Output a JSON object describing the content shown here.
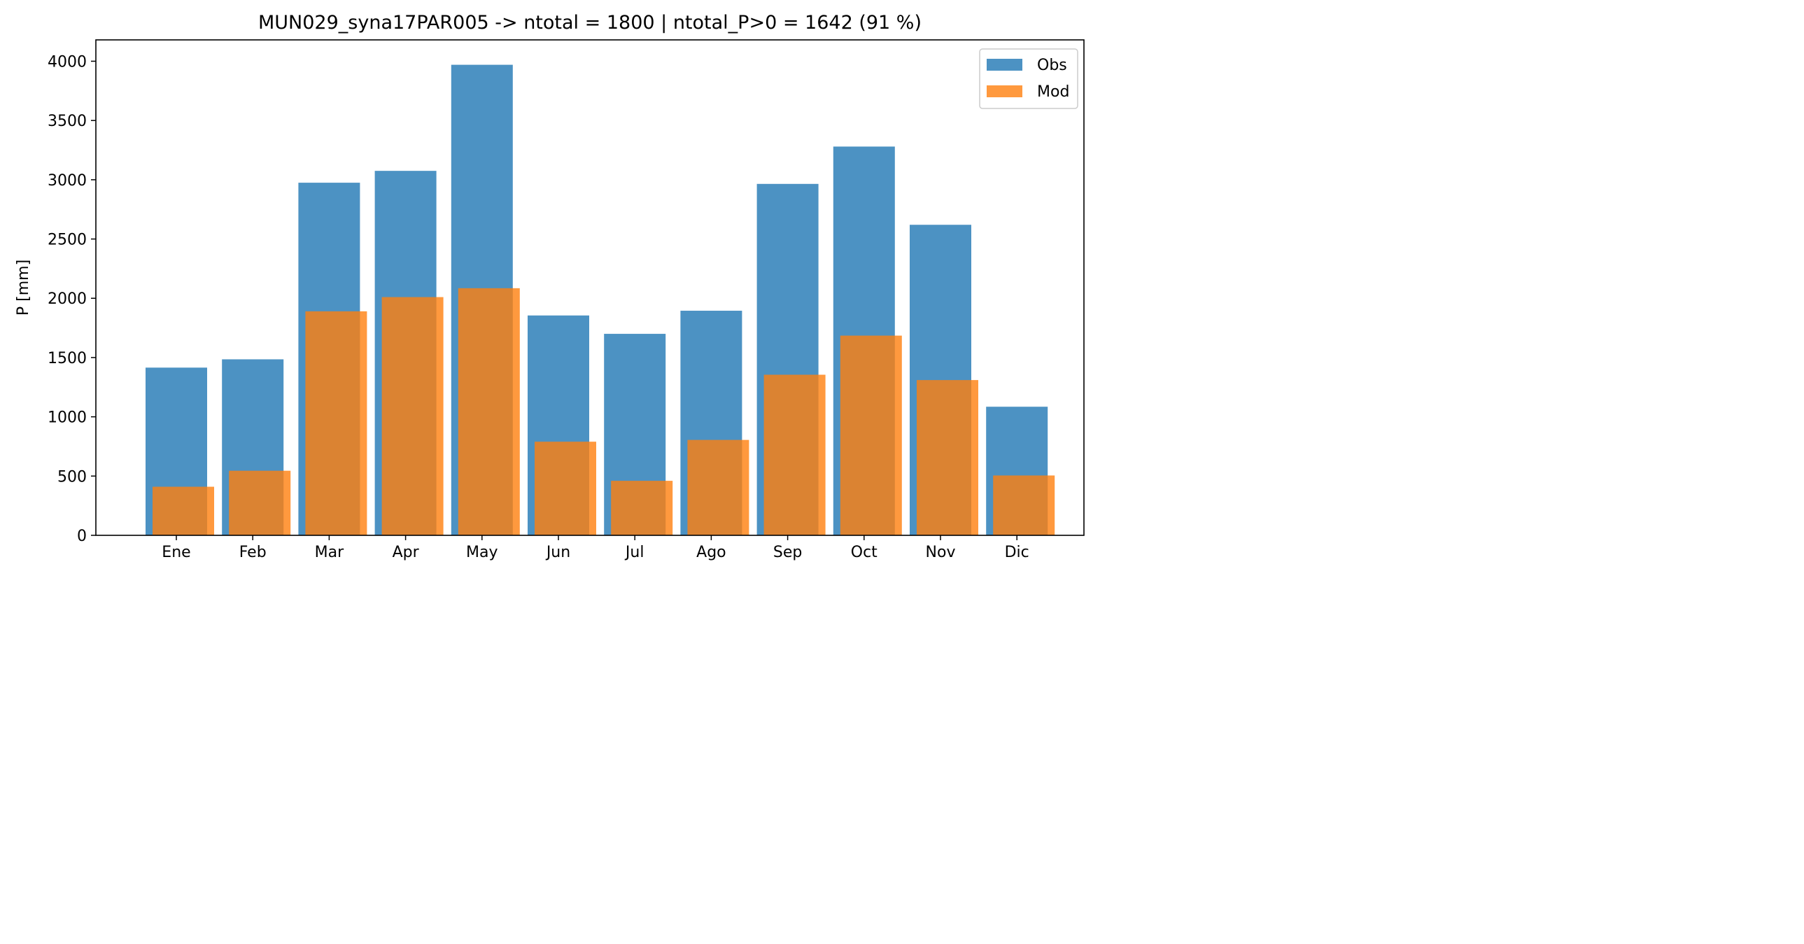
{
  "chart_data": {
    "type": "bar",
    "title": "MUN029_syna17PAR005 -> ntotal = 1800 | ntotal_P>0 = 1642 (91 %)",
    "xlabel": "",
    "ylabel": "P [mm]",
    "categories": [
      "Ene",
      "Feb",
      "Mar",
      "Apr",
      "May",
      "Jun",
      "Jul",
      "Ago",
      "Sep",
      "Oct",
      "Nov",
      "Dic"
    ],
    "series": [
      {
        "name": "Obs",
        "color": "#1f77b4",
        "values": [
          1415,
          1485,
          2975,
          3075,
          3970,
          1855,
          1700,
          1895,
          2965,
          3280,
          2620,
          1085
        ]
      },
      {
        "name": "Mod",
        "color": "#ff7f0e",
        "values": [
          410,
          545,
          1890,
          2010,
          2085,
          790,
          460,
          805,
          1355,
          1685,
          1310,
          505
        ]
      }
    ],
    "ylim": [
      0,
      4180
    ],
    "yticks": [
      0,
      500,
      1000,
      1500,
      2000,
      2500,
      3000,
      3500,
      4000
    ],
    "grid": false,
    "legend_position": "top-right"
  }
}
